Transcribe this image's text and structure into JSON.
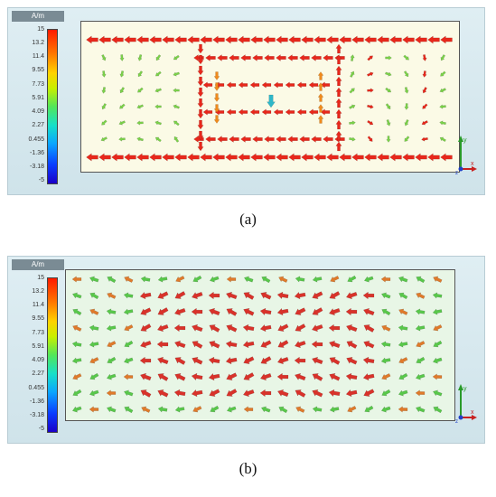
{
  "figure": {
    "panel_a": {
      "unit_label": "A/m",
      "scale_ticks": [
        "15",
        "13.2",
        "11.4",
        "9.55",
        "7.73",
        "5.91",
        "4.09",
        "2.27",
        "0.455",
        "-1.36",
        "-3.18",
        "-5"
      ],
      "caption": "(a)",
      "axis_labels": {
        "x": "x",
        "y": "y",
        "z": "z"
      },
      "vector_colors": {
        "strong": "#e8271b",
        "medium": "#f08a1c",
        "weak": "#7bd24a",
        "minimum": "#2fb7c8"
      }
    },
    "panel_b": {
      "unit_label": "A/m",
      "scale_ticks": [
        "15",
        "13.2",
        "11.4",
        "9.55",
        "7.73",
        "5.91",
        "4.09",
        "2.27",
        "0.455",
        "-1.36",
        "-3.18",
        "-5"
      ],
      "caption": "(b)",
      "axis_labels": {
        "x": "x",
        "y": "y",
        "z": "z"
      },
      "vector_colors": {
        "strong": "#d9322a",
        "medium": "#e07a2a",
        "weak": "#58c84a",
        "minimum": "#33c4a8"
      }
    }
  }
}
